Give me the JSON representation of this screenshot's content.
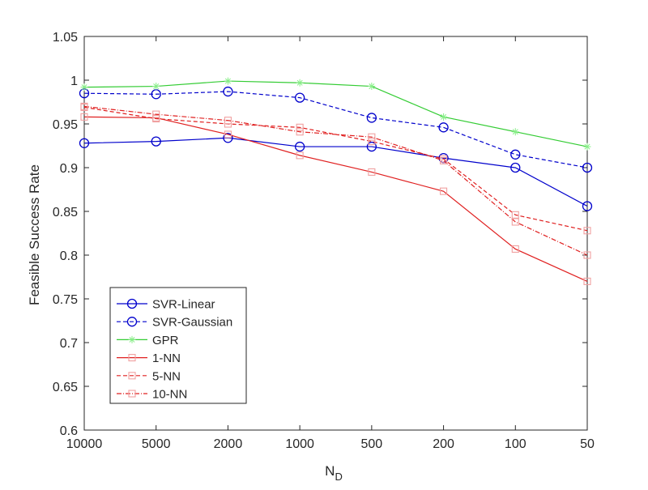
{
  "chart_data": {
    "type": "line",
    "title": "",
    "xlabel": "N",
    "xlabel_subscript": "D",
    "ylabel": "Feasible Success Rate",
    "categories": [
      "10000",
      "5000",
      "2000",
      "1000",
      "500",
      "200",
      "100",
      "50"
    ],
    "ylim": [
      0.6,
      1.05
    ],
    "yticks": [
      "0.6",
      "0.65",
      "0.7",
      "0.75",
      "0.8",
      "0.85",
      "0.9",
      "0.95",
      "1",
      "1.05"
    ],
    "grid": false,
    "legend_position": "bottom-left",
    "series": [
      {
        "name": "SVR-Linear",
        "color": "#0000cc",
        "dash": "solid",
        "marker": "circle",
        "values": [
          0.928,
          0.93,
          0.934,
          0.924,
          0.924,
          0.911,
          0.9,
          0.856
        ]
      },
      {
        "name": "SVR-Gaussian",
        "color": "#0000cc",
        "dash": "dashed",
        "marker": "circle",
        "values": [
          0.985,
          0.984,
          0.987,
          0.98,
          0.957,
          0.946,
          0.915,
          0.9
        ]
      },
      {
        "name": "GPR",
        "color": "#33cc33",
        "dash": "solid",
        "marker": "star",
        "values": [
          0.992,
          0.993,
          0.999,
          0.997,
          0.993,
          0.958,
          0.941,
          0.924
        ]
      },
      {
        "name": "1-NN",
        "color": "#e02020",
        "dash": "solid",
        "marker": "square",
        "values": [
          0.958,
          0.957,
          0.938,
          0.914,
          0.895,
          0.873,
          0.807,
          0.77
        ]
      },
      {
        "name": "5-NN",
        "color": "#e02020",
        "dash": "dashed",
        "marker": "square",
        "values": [
          0.969,
          0.956,
          0.95,
          0.946,
          0.93,
          0.91,
          0.846,
          0.828
        ]
      },
      {
        "name": "10-NN",
        "color": "#e02020",
        "dash": "dashdot",
        "marker": "square",
        "values": [
          0.97,
          0.961,
          0.954,
          0.941,
          0.935,
          0.908,
          0.838,
          0.8
        ]
      }
    ]
  }
}
